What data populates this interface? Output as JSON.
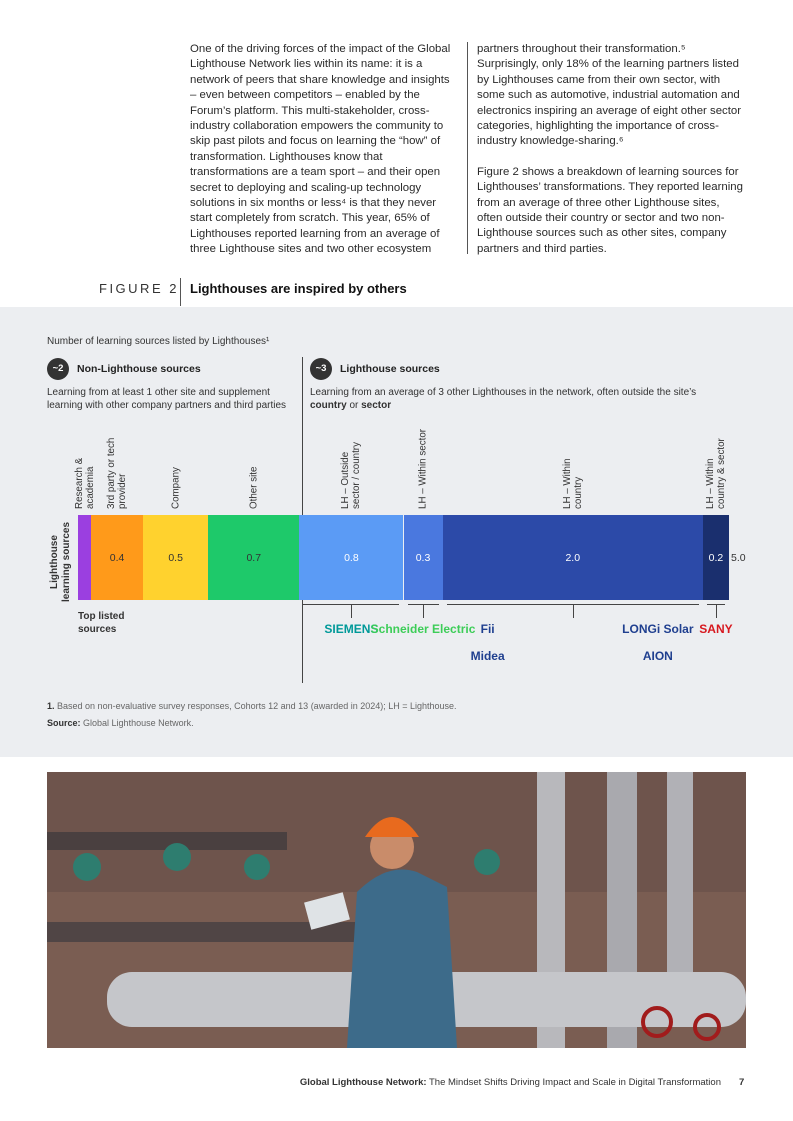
{
  "body": {
    "left": "One of the driving forces of the impact of the Global Lighthouse Network lies within its name: it is a network of peers that share knowledge and insights – even between competitors – enabled by the Forum’s platform. This multi-stakeholder, cross-industry collaboration empowers the community to skip past pilots and focus on learning the “how” of transformation. Lighthouses know that transformations are a team sport – and their open secret to deploying and scaling-up technology solutions in six months or less⁴ is that they never start completely from scratch. This year, 65% of Lighthouses reported learning from an average of three Lighthouse sites and two other ecosystem",
    "right": [
      "partners throughout their transformation.⁵ Surprisingly, only 18% of the learning partners listed by Lighthouses came from their own sector, with some such as automotive, industrial automation and electronics inspiring an average of eight other sector categories, highlighting the importance of cross-industry knowledge-sharing.⁶",
      "Figure 2 shows a breakdown of learning sources for Lighthouses’ transformations. They reported learning from an average of three other Lighthouse sites, often outside their country or sector and two non-Lighthouse sources such as other sites, company partners and third parties."
    ]
  },
  "figure": {
    "label": "FIGURE 2",
    "title": "Lighthouses are inspired by others"
  },
  "chart_data": {
    "type": "bar",
    "orientation": "horizontal",
    "stacked": true,
    "subtitle": "Number of learning sources listed by Lighthouses¹",
    "groups": [
      {
        "badge": "~2",
        "title": "Non-Lighthouse sources",
        "description": [
          "Learning from at least 1 other site and supplement learning with other company partners and third parties"
        ]
      },
      {
        "badge": "~3",
        "title": "Lighthouse sources",
        "description": [
          "Learning from an average of 3 other Lighthouses in the network, often outside the site’s ",
          "country",
          " or ",
          "sector"
        ]
      }
    ],
    "y_label": "Lighthouse learning sources",
    "categories": [
      "Research & academia",
      "3rd party or tech provider",
      "Company",
      "Other site",
      "LH – Outside sector / country",
      "LH – Within sector",
      "LH – Within country",
      "LH – Within country & sector"
    ],
    "values": [
      0.1,
      0.4,
      0.5,
      0.7,
      0.8,
      0.3,
      2.0,
      0.2
    ],
    "value_labels": [
      null,
      "0.4",
      "0.5",
      "0.7",
      "0.8",
      "0.3",
      "2.0",
      "0.2"
    ],
    "colors": [
      "#9b3fe0",
      "#ff9a1a",
      "#ffd22e",
      "#1ec96a",
      "#5b9bf5",
      "#4a78df",
      "#2c4aa8",
      "#1a2f6e"
    ],
    "label_colors": [
      "#333333",
      "#333333",
      "#333333",
      "#333333",
      "#ffffff",
      "#ffffff",
      "#ffffff",
      "#ffffff"
    ],
    "xlim": [
      0,
      5
    ],
    "total": {
      "value": 5,
      "label": "5.0"
    },
    "top_sources_label": "Top listed sources",
    "top_sources": [
      [
        "SIEMENS"
      ],
      [
        "Schneider Electric"
      ],
      [
        "Fii",
        "LONGi Solar",
        "Midea",
        "AION"
      ],
      [
        "SANY"
      ]
    ]
  },
  "footnote": {
    "number": "1.",
    "text": "Based on non-evaluative survey responses, Cohorts 12 and 13 (awarded in 2024); LH = Lighthouse."
  },
  "source": {
    "label": "Source:",
    "text": "Global Lighthouse Network."
  },
  "footer": {
    "title": "Global Lighthouse Network:",
    "subtitle": "The Mindset Shifts Driving Impact and Scale in Digital Transformation",
    "page": "7"
  }
}
